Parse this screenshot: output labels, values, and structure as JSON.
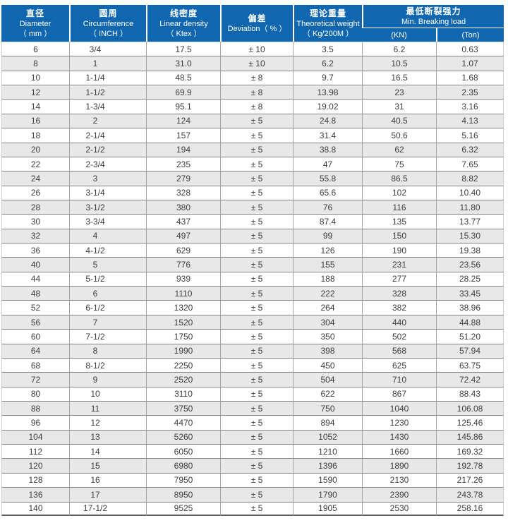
{
  "colors": {
    "header_blue": "#1166b0",
    "row_alt_gray": "#e8e8e8",
    "body_text": "#3d3d3d",
    "header_text": "#ffffff"
  },
  "table": {
    "header": {
      "columns": [
        {
          "zh": "直径",
          "en": "Diameter",
          "unit": "（ mm ）"
        },
        {
          "zh": "圆周",
          "en": "Circumference",
          "unit": "（ INCH ）"
        },
        {
          "zh": "线密度",
          "en": "Linear density",
          "unit": "（ Ktex ）"
        },
        {
          "zh": "偏差",
          "en": "Deviation（ % ）"
        },
        {
          "zh": "理论重量",
          "en": "Theoretical weight",
          "unit": "（ Kg/200M ）"
        },
        {
          "zh": "最低断裂强力",
          "en": "Min. Breaking load"
        }
      ],
      "sub_columns": {
        "kn": "(KN)",
        "ton": "(Ton)"
      }
    },
    "column_keys": [
      "diameter",
      "circumference",
      "linear-density",
      "deviation",
      "theoretical-weight",
      "breaking-load-kn",
      "breaking-load-ton"
    ],
    "rows": [
      [
        "6",
        "3/4",
        "17.5",
        "± 10",
        "3.5",
        "6.2",
        "0.63"
      ],
      [
        "8",
        "1",
        "31.0",
        "± 10",
        "6.2",
        "10.5",
        "1.07"
      ],
      [
        "10",
        "1-1/4",
        "48.5",
        "± 8",
        "9.7",
        "16.5",
        "1.68"
      ],
      [
        "12",
        "1-1/2",
        "69.9",
        "± 8",
        "13.98",
        "23",
        "2.35"
      ],
      [
        "14",
        "1-3/4",
        "95.1",
        "± 8",
        "19.02",
        "31",
        "3.16"
      ],
      [
        "16",
        "2",
        "124",
        "± 5",
        "24.8",
        "40.5",
        "4.13"
      ],
      [
        "18",
        "2-1/4",
        "157",
        "± 5",
        "31.4",
        "50.6",
        "5.16"
      ],
      [
        "20",
        "2-1/2",
        "194",
        "± 5",
        "38.8",
        "62",
        "6.32"
      ],
      [
        "22",
        "2-3/4",
        "235",
        "± 5",
        "47",
        "75",
        "7.65"
      ],
      [
        "24",
        "3",
        "279",
        "± 5",
        "55.8",
        "86.5",
        "8.82"
      ],
      [
        "26",
        "3-1/4",
        "328",
        "± 5",
        "65.6",
        "102",
        "10.40"
      ],
      [
        "28",
        "3-1/2",
        "380",
        "± 5",
        "76",
        "116",
        "11.80"
      ],
      [
        "30",
        "3-3/4",
        "437",
        "± 5",
        "87.4",
        "135",
        "13.77"
      ],
      [
        "32",
        "4",
        "497",
        "± 5",
        "99",
        "150",
        "15.30"
      ],
      [
        "36",
        "4-1/2",
        "629",
        "± 5",
        "126",
        "190",
        "19.38"
      ],
      [
        "40",
        "5",
        "776",
        "± 5",
        "155",
        "231",
        "23.56"
      ],
      [
        "44",
        "5-1/2",
        "939",
        "± 5",
        "188",
        "277",
        "28.25"
      ],
      [
        "48",
        "6",
        "1110",
        "± 5",
        "222",
        "328",
        "33.45"
      ],
      [
        "52",
        "6-1/2",
        "1320",
        "± 5",
        "264",
        "382",
        "38.96"
      ],
      [
        "56",
        "7",
        "1520",
        "± 5",
        "304",
        "440",
        "44.88"
      ],
      [
        "60",
        "7-1/2",
        "1750",
        "± 5",
        "350",
        "502",
        "51.20"
      ],
      [
        "64",
        "8",
        "1990",
        "± 5",
        "398",
        "568",
        "57.94"
      ],
      [
        "68",
        "8-1/2",
        "2250",
        "± 5",
        "450",
        "625",
        "63.75"
      ],
      [
        "72",
        "9",
        "2520",
        "± 5",
        "504",
        "710",
        "72.42"
      ],
      [
        "80",
        "10",
        "3110",
        "± 5",
        "622",
        "867",
        "88.43"
      ],
      [
        "88",
        "11",
        "3750",
        "± 5",
        "750",
        "1040",
        "106.08"
      ],
      [
        "96",
        "12",
        "4470",
        "± 5",
        "894",
        "1230",
        "125.46"
      ],
      [
        "104",
        "13",
        "5260",
        "± 5",
        "1052",
        "1430",
        "145.86"
      ],
      [
        "112",
        "14",
        "6050",
        "± 5",
        "1210",
        "1660",
        "169.32"
      ],
      [
        "120",
        "15",
        "6980",
        "± 5",
        "1396",
        "1890",
        "192.78"
      ],
      [
        "128",
        "16",
        "7950",
        "± 5",
        "1590",
        "2130",
        "217.26"
      ],
      [
        "136",
        "17",
        "8950",
        "± 5",
        "1790",
        "2390",
        "243.78"
      ],
      [
        "140",
        "17-1/2",
        "9525",
        "± 5",
        "1905",
        "2530",
        "258.16"
      ]
    ]
  }
}
